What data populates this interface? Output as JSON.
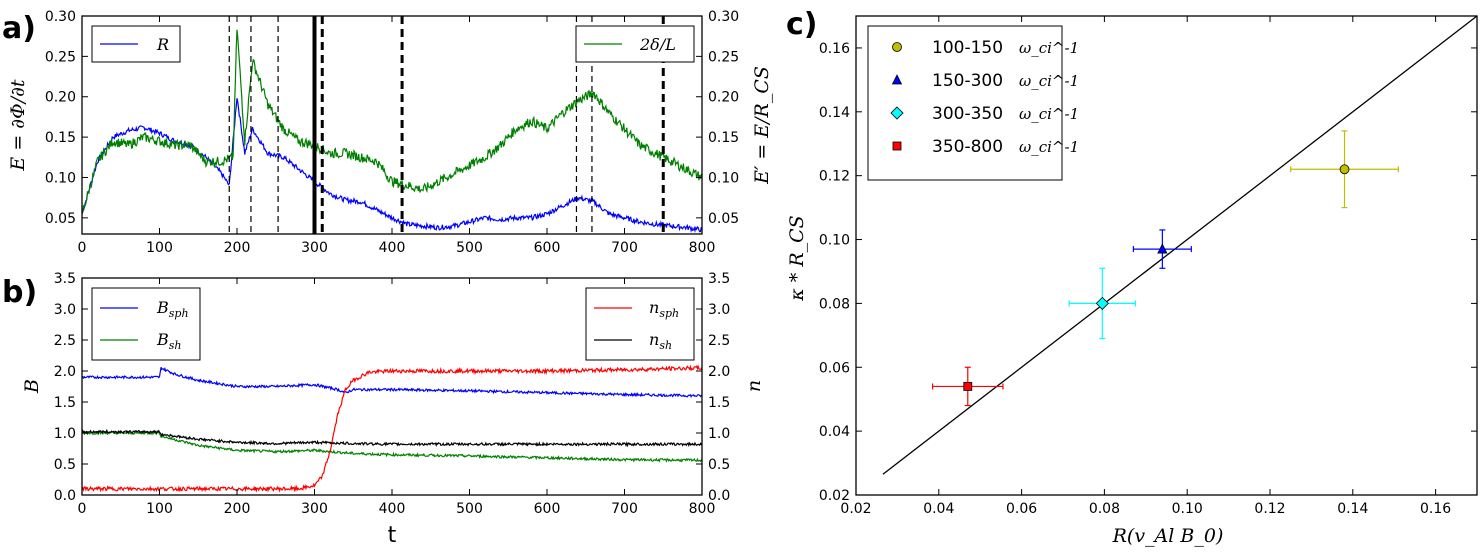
{
  "chart_data": [
    {
      "panel": "a)",
      "type": "line",
      "xlim": [
        0,
        800
      ],
      "ylim": [
        0.03,
        0.3
      ],
      "x_ticks": [
        "0",
        "100",
        "200",
        "300",
        "400",
        "500",
        "600",
        "700",
        "800"
      ],
      "y_ticks_left": [
        "0.05",
        "0.10",
        "0.15",
        "0.20",
        "0.25",
        "0.30"
      ],
      "y_ticks_right": [
        "0.05",
        "0.10",
        "0.15",
        "0.20",
        "0.25",
        "0.30"
      ],
      "ylabel_left": "E = ∂Φ/∂t",
      "ylabel_right": "E′ = E/R_CS",
      "series": [
        {
          "name": "R",
          "color": "#0000ff",
          "x": [
            0,
            20,
            40,
            60,
            80,
            100,
            120,
            140,
            160,
            180,
            190,
            200,
            210,
            220,
            240,
            260,
            280,
            300,
            320,
            340,
            360,
            380,
            400,
            420,
            440,
            460,
            480,
            500,
            520,
            540,
            560,
            580,
            600,
            620,
            640,
            660,
            680,
            700,
            720,
            740,
            760,
            780,
            800
          ],
          "values": [
            0.055,
            0.12,
            0.15,
            0.158,
            0.162,
            0.155,
            0.145,
            0.14,
            0.125,
            0.105,
            0.09,
            0.2,
            0.13,
            0.16,
            0.13,
            0.125,
            0.11,
            0.095,
            0.08,
            0.072,
            0.07,
            0.06,
            0.05,
            0.042,
            0.04,
            0.038,
            0.04,
            0.045,
            0.05,
            0.048,
            0.05,
            0.05,
            0.055,
            0.065,
            0.075,
            0.07,
            0.055,
            0.05,
            0.045,
            0.042,
            0.04,
            0.038,
            0.035
          ]
        },
        {
          "name": "2δ/L",
          "color": "#008000",
          "x": [
            0,
            20,
            40,
            60,
            80,
            100,
            120,
            140,
            160,
            180,
            195,
            200,
            210,
            220,
            240,
            260,
            280,
            300,
            320,
            340,
            360,
            380,
            400,
            420,
            440,
            460,
            480,
            500,
            520,
            540,
            560,
            580,
            600,
            620,
            640,
            660,
            680,
            700,
            720,
            740,
            760,
            780,
            800
          ],
          "values": [
            0.055,
            0.12,
            0.145,
            0.14,
            0.15,
            0.145,
            0.14,
            0.14,
            0.12,
            0.12,
            0.125,
            0.285,
            0.145,
            0.245,
            0.19,
            0.16,
            0.145,
            0.14,
            0.13,
            0.13,
            0.125,
            0.12,
            0.095,
            0.09,
            0.085,
            0.095,
            0.105,
            0.115,
            0.125,
            0.14,
            0.16,
            0.17,
            0.16,
            0.18,
            0.195,
            0.205,
            0.18,
            0.16,
            0.14,
            0.13,
            0.12,
            0.11,
            0.1
          ]
        }
      ],
      "vlines_thin_dashed": [
        190,
        218,
        253,
        638,
        658
      ],
      "vlines_thick_solid": [
        300
      ],
      "vlines_thick_dashed": [
        310,
        413,
        750
      ],
      "legend_left": "R",
      "legend_right": "2δ/L"
    },
    {
      "panel": "b)",
      "type": "line",
      "xlim": [
        0,
        800
      ],
      "ylim": [
        0.0,
        3.5
      ],
      "x_ticks": [
        "0",
        "100",
        "200",
        "300",
        "400",
        "500",
        "600",
        "700",
        "800"
      ],
      "y_ticks_left": [
        "0.0",
        "0.5",
        "1.0",
        "1.5",
        "2.0",
        "2.5",
        "3.0",
        "3.5"
      ],
      "y_ticks_right": [
        "0.0",
        "0.5",
        "1.0",
        "1.5",
        "2.0",
        "2.5",
        "3.0",
        "3.5"
      ],
      "xlabel": "t",
      "ylabel_left": "B",
      "ylabel_right": "n",
      "series": [
        {
          "name": "B_sph",
          "color": "#0000ff",
          "x": [
            0,
            100,
            102,
            120,
            150,
            200,
            250,
            300,
            330,
            340,
            350,
            400,
            500,
            600,
            700,
            800
          ],
          "values": [
            1.9,
            1.9,
            2.05,
            1.95,
            1.85,
            1.75,
            1.75,
            1.78,
            1.7,
            1.65,
            1.7,
            1.7,
            1.68,
            1.65,
            1.62,
            1.6
          ]
        },
        {
          "name": "B_sh",
          "color": "#008000",
          "x": [
            0,
            100,
            102,
            150,
            200,
            250,
            300,
            350,
            400,
            500,
            600,
            700,
            800
          ],
          "values": [
            1.0,
            1.0,
            0.95,
            0.8,
            0.72,
            0.7,
            0.72,
            0.67,
            0.65,
            0.63,
            0.6,
            0.57,
            0.56
          ]
        },
        {
          "name": "n_sph",
          "color": "#ff0000",
          "x": [
            0,
            100,
            200,
            280,
            300,
            310,
            320,
            330,
            340,
            350,
            370,
            400,
            500,
            600,
            700,
            800
          ],
          "values": [
            0.1,
            0.1,
            0.1,
            0.1,
            0.15,
            0.3,
            0.7,
            1.3,
            1.7,
            1.85,
            1.98,
            2.0,
            2.0,
            2.0,
            2.02,
            2.05
          ]
        },
        {
          "name": "n_sh",
          "color": "#000000",
          "x": [
            0,
            100,
            102,
            150,
            200,
            250,
            300,
            350,
            400,
            500,
            600,
            700,
            800
          ],
          "values": [
            1.02,
            1.02,
            0.98,
            0.9,
            0.85,
            0.83,
            0.85,
            0.83,
            0.82,
            0.82,
            0.82,
            0.82,
            0.82
          ]
        }
      ],
      "legend_left": [
        "B_sph",
        "B_sh"
      ],
      "legend_right": [
        "n_sph",
        "n_sh"
      ]
    },
    {
      "panel": "c)",
      "type": "scatter",
      "xlim": [
        0.02,
        0.17
      ],
      "ylim": [
        0.02,
        0.17
      ],
      "x_ticks": [
        "0.02",
        "0.04",
        "0.06",
        "0.08",
        "0.10",
        "0.12",
        "0.14",
        "0.16"
      ],
      "y_ticks": [
        "0.02",
        "0.04",
        "0.06",
        "0.08",
        "0.10",
        "0.12",
        "0.14",
        "0.16"
      ],
      "xlabel": "R(v_Al B_0)",
      "ylabel": "κ * R_CS",
      "reference_line": {
        "x": [
          0.0265,
          0.17
        ],
        "y": [
          0.0265,
          0.17
        ]
      },
      "points": [
        {
          "label": "100-150",
          "marker": "circle",
          "color": "#bfbf00",
          "x": 0.138,
          "y": 0.122,
          "xerr": 0.013,
          "yerr": 0.012
        },
        {
          "label": "150-300",
          "marker": "triangle",
          "color": "#0000ff",
          "x": 0.094,
          "y": 0.097,
          "xerr": 0.007,
          "yerr": 0.006
        },
        {
          "label": "300-350",
          "marker": "diamond",
          "color": "#00ffff",
          "x": 0.0795,
          "y": 0.08,
          "xerr": 0.008,
          "yerr": 0.011
        },
        {
          "label": "350-800",
          "marker": "square",
          "color": "#ff0000",
          "x": 0.047,
          "y": 0.054,
          "xerr": 0.0085,
          "yerr": 0.006
        }
      ],
      "legend_unit": "ω_ci^-1"
    }
  ]
}
